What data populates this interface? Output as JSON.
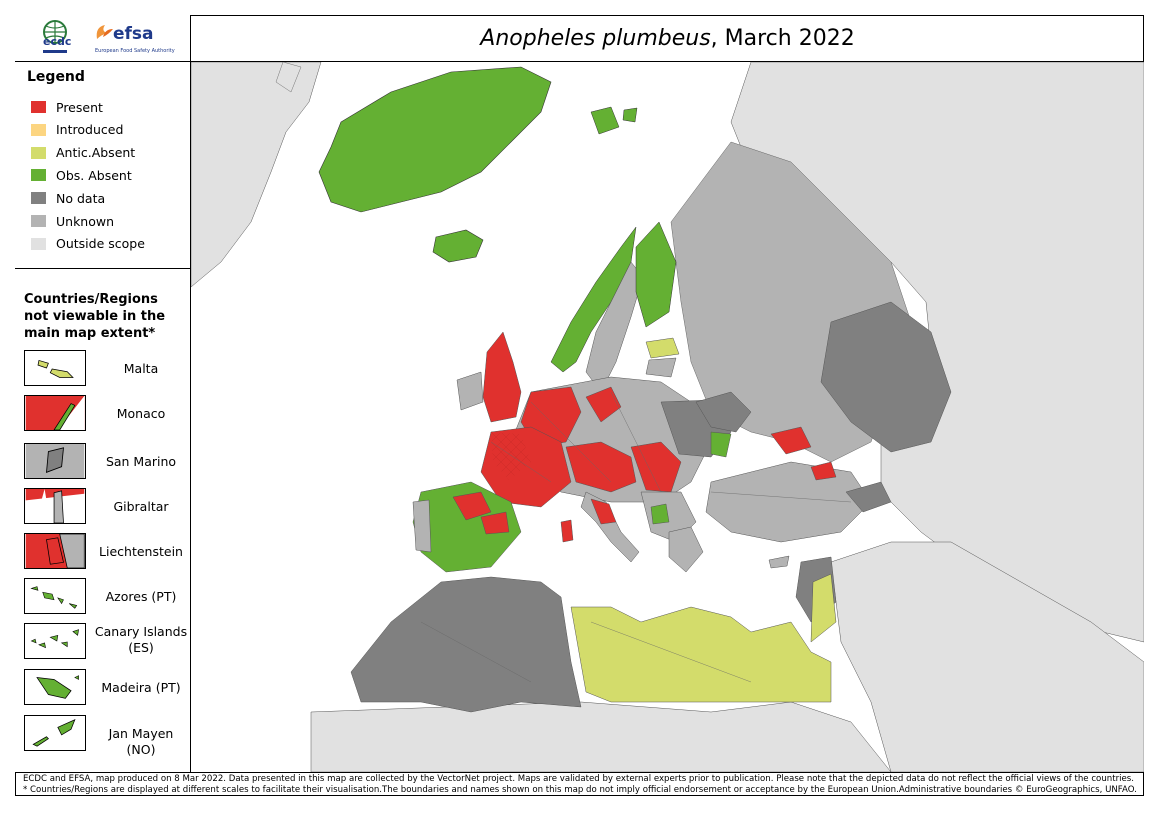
{
  "header": {
    "logos": {
      "ecdc": "ecdc",
      "efsa": "efsa",
      "efsa_sub": "European Food Safety Authority"
    },
    "title_species": "Anopheles plumbeus",
    "title_date": ", March 2022"
  },
  "legend": {
    "title": "Legend",
    "items": [
      {
        "label": "Present",
        "color": "#e0312e"
      },
      {
        "label": "Introduced",
        "color": "#fcd581"
      },
      {
        "label": "Antic.Absent",
        "color": "#d3dc6b"
      },
      {
        "label": "Obs. Absent",
        "color": "#64b033"
      },
      {
        "label": "No data",
        "color": "#808080"
      },
      {
        "label": "Unknown",
        "color": "#b3b3b3"
      },
      {
        "label": "Outside scope",
        "color": "#e1e1e1"
      }
    ]
  },
  "regions": {
    "title": "Countries/Regions not viewable in the main map extent*",
    "items": [
      {
        "label": "Malta",
        "status": "Antic.Absent"
      },
      {
        "label": "Monaco",
        "status": "Present"
      },
      {
        "label": "San Marino",
        "status": "No data"
      },
      {
        "label": "Gibraltar",
        "status": "Present"
      },
      {
        "label": "Liechtenstein",
        "status": "Present"
      },
      {
        "label": "Azores (PT)",
        "status": "Obs. Absent"
      },
      {
        "label": "Canary Islands (ES)",
        "status": "Obs. Absent"
      },
      {
        "label": "Madeira (PT)",
        "status": "Obs. Absent"
      },
      {
        "label": "Jan Mayen (NO)",
        "status": "Obs. Absent"
      }
    ]
  },
  "footer": {
    "line1": "ECDC and EFSA, map produced on 8 Mar 2022. Data presented in this map are collected by the VectorNet project. Maps are validated by external experts prior to publication. Please note that the depicted data do not reflect the official views of the countries.",
    "line2": "* Countries/Regions are displayed at different scales to facilitate their visualisation.The boundaries and names shown on this map do not imply official endorsement or acceptance by the European Union.Administrative boundaries © EuroGeographics, UNFAO."
  }
}
